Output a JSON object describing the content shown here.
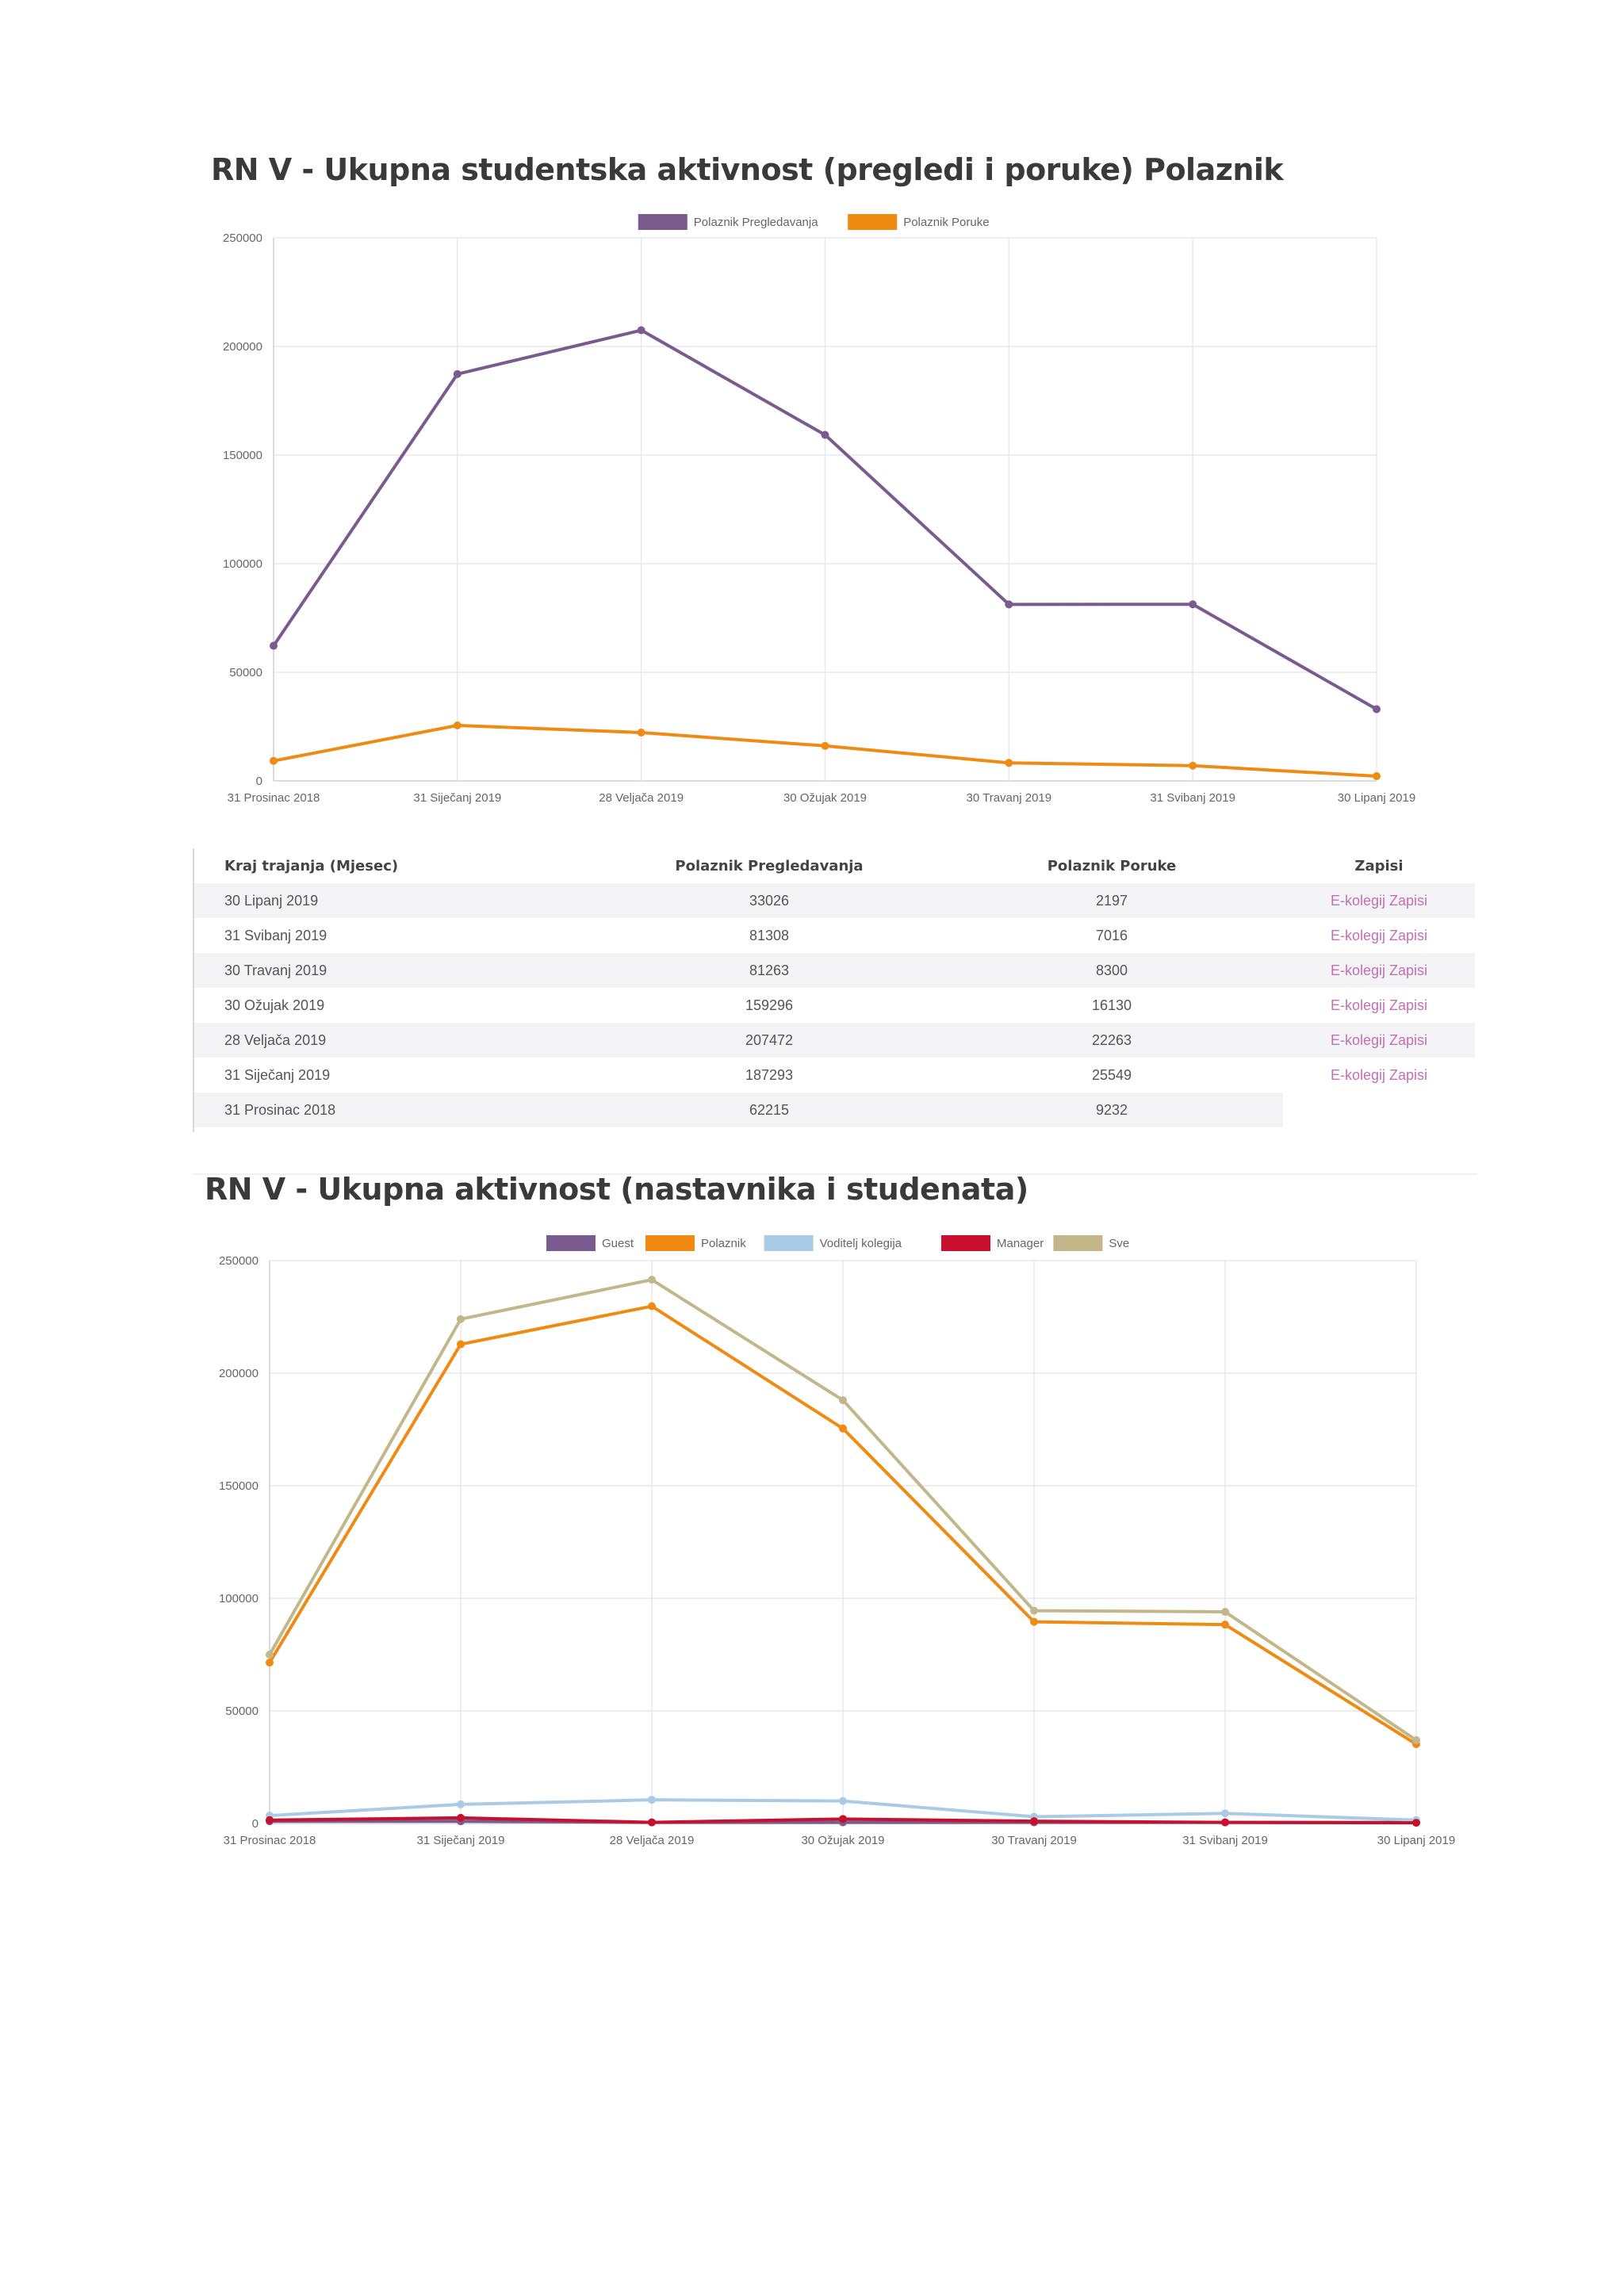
{
  "chart1": {
    "title": "RN V - Ukupna studentska aktivnost (pregledi i poruke) Polaznik"
  },
  "chart2": {
    "title": "RN V - Ukupna aktivnost (nastavnika i studenata)"
  },
  "table": {
    "headers": [
      "Kraj trajanja (Mjesec)",
      "Polaznik Pregledavanja",
      "Polaznik Poruke",
      "Zapisi"
    ],
    "rows": [
      {
        "month": "30 Lipanj 2019",
        "views": "33026",
        "messages": "2197",
        "link": "E-kolegij Zapisi"
      },
      {
        "month": "31 Svibanj 2019",
        "views": "81308",
        "messages": "7016",
        "link": "E-kolegij Zapisi"
      },
      {
        "month": "30 Travanj 2019",
        "views": "81263",
        "messages": "8300",
        "link": "E-kolegij Zapisi"
      },
      {
        "month": "30 Ožujak 2019",
        "views": "159296",
        "messages": "16130",
        "link": "E-kolegij Zapisi"
      },
      {
        "month": "28 Veljača 2019",
        "views": "207472",
        "messages": "22263",
        "link": "E-kolegij Zapisi"
      },
      {
        "month": "31 Siječanj 2019",
        "views": "187293",
        "messages": "25549",
        "link": "E-kolegij Zapisi"
      },
      {
        "month": "31 Prosinac 2018",
        "views": "62215",
        "messages": "9232",
        "link": ""
      }
    ]
  },
  "chart_data": [
    {
      "type": "line",
      "title": "RN V - Ukupna studentska aktivnost (pregledi i poruke) Polaznik",
      "categories": [
        "31 Prosinac 2018",
        "31 Siječanj 2019",
        "28 Veljača 2019",
        "30 Ožujak 2019",
        "30 Travanj 2019",
        "31 Svibanj 2019",
        "30 Lipanj 2019"
      ],
      "ylim": [
        0,
        250000
      ],
      "yticks": [
        0,
        50000,
        100000,
        150000,
        200000,
        250000
      ],
      "legend_position": "top-center",
      "series": [
        {
          "name": "Polaznik Pregledavanja",
          "color": "#7b5a8e",
          "values": [
            62215,
            187293,
            207472,
            159296,
            81263,
            81308,
            33026
          ]
        },
        {
          "name": "Polaznik Poruke",
          "color": "#ef8a12",
          "values": [
            9232,
            25549,
            22263,
            16130,
            8300,
            7016,
            2197
          ]
        }
      ]
    },
    {
      "type": "line",
      "title": "RN V - Ukupna aktivnost (nastavnika i studenata)",
      "categories": [
        "31 Prosinac 2018",
        "31 Siječanj 2019",
        "28 Veljača 2019",
        "30 Ožujak 2019",
        "30 Travanj 2019",
        "31 Svibanj 2019",
        "30 Lipanj 2019"
      ],
      "ylim": [
        0,
        250000
      ],
      "yticks": [
        0,
        50000,
        100000,
        150000,
        200000,
        250000
      ],
      "legend_position": "top-center",
      "series": [
        {
          "name": "Guest",
          "color": "#7b5a8e",
          "values": [
            1000,
            1000,
            500,
            500,
            500,
            500,
            500
          ]
        },
        {
          "name": "Polaznik",
          "color": "#ef8a12",
          "values": [
            71447,
            212842,
            229735,
            175426,
            89563,
            88324,
            35223
          ]
        },
        {
          "name": "Voditelj kolegija",
          "color": "#a9cbe6",
          "values": [
            3500,
            8500,
            10500,
            10000,
            3000,
            4500,
            1500
          ]
        },
        {
          "name": "Manager",
          "color": "#c8102e",
          "values": [
            1500,
            2500,
            500,
            2000,
            1000,
            500,
            300
          ]
        },
        {
          "name": "Sve",
          "color": "#c3b68a",
          "values": [
            75000,
            224000,
            241500,
            188000,
            94500,
            94000,
            37000
          ]
        }
      ]
    }
  ]
}
